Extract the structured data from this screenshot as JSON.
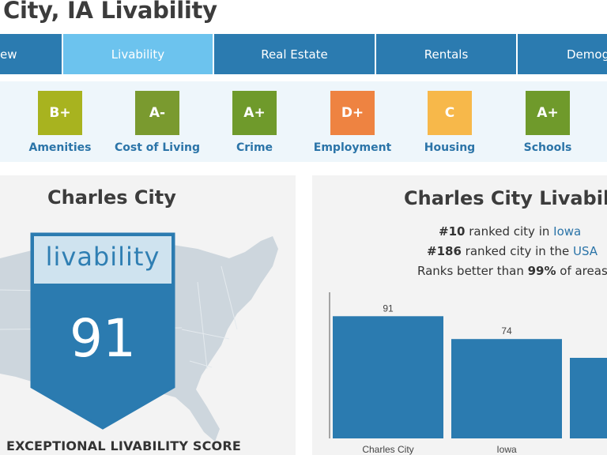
{
  "page": {
    "title": "City, IA Livability"
  },
  "tabs": [
    {
      "label": "ew",
      "active": false
    },
    {
      "label": "Livability",
      "active": true
    },
    {
      "label": "Real Estate",
      "active": false
    },
    {
      "label": "Rentals",
      "active": false
    },
    {
      "label": "Demog",
      "active": false
    }
  ],
  "grades": [
    {
      "grade": "B+",
      "label": "Amenities",
      "color": "#a8b31f"
    },
    {
      "grade": "A-",
      "label": "Cost of Living",
      "color": "#7a9a2f"
    },
    {
      "grade": "A+",
      "label": "Crime",
      "color": "#6f9a2b"
    },
    {
      "grade": "D+",
      "label": "Employment",
      "color": "#ee8341"
    },
    {
      "grade": "C",
      "label": "Housing",
      "color": "#f7b84a"
    },
    {
      "grade": "A+",
      "label": "Schools",
      "color": "#6f9a2b"
    }
  ],
  "left_panel": {
    "city": "Charles City",
    "badge_word": "livability",
    "score": "91",
    "caption": "EXCEPTIONAL LIVABILITY SCORE"
  },
  "right_panel": {
    "title": "Charles City Livability",
    "rank_state": {
      "rank": "#10",
      "text": " ranked city in ",
      "place": "Iowa"
    },
    "rank_usa": {
      "rank": "#186",
      "text": " ranked city in the ",
      "place": "USA"
    },
    "better": {
      "prefix": "Ranks better than ",
      "pct": "99%",
      "suffix": " of areas"
    }
  },
  "chart_data": {
    "type": "bar",
    "categories": [
      "Charles City",
      "Iowa",
      ""
    ],
    "values": [
      91,
      74,
      null
    ],
    "data_labels": [
      "91",
      "74",
      ""
    ],
    "color": "#2b7bb0",
    "ylim": [
      0,
      100
    ]
  },
  "colors": {
    "tab": "#2b7bb0",
    "tab_active": "#6cc3ee",
    "accent": "#2b74a8"
  }
}
